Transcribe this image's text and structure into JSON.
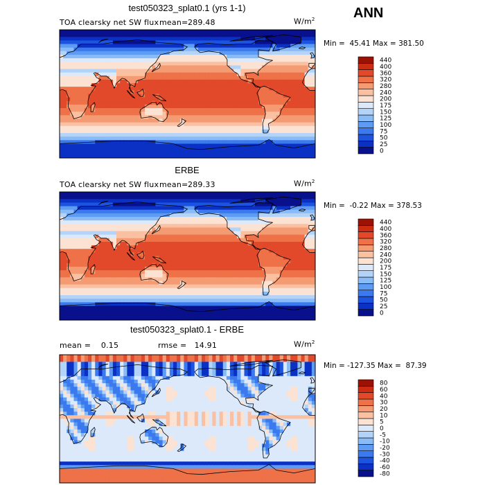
{
  "season": "ANN",
  "chart_data": [
    {
      "type": "heatmap",
      "title": "test050323_splat0.1 (yrs 1-1)",
      "left_label": "TOA clearsky net SW flux",
      "stat_label": "mean=",
      "stat_value": "289.48",
      "units": "W/m",
      "units_sup": "2",
      "min_label": "Min =",
      "min_value": "45.41",
      "max_label": "Max =",
      "max_value": "381.50",
      "levels": [
        "0",
        "25",
        "50",
        "75",
        "100",
        "125",
        "150",
        "175",
        "200",
        "240",
        "280",
        "320",
        "360",
        "400",
        "440"
      ],
      "colors": [
        "#08108c",
        "#0b31c4",
        "#1d54df",
        "#3a79ee",
        "#5d9bf4",
        "#89bcf7",
        "#b3d4f8",
        "#dbe9fa",
        "#fbe2d3",
        "#f9c0a2",
        "#f59b73",
        "#ee7148",
        "#e2492a",
        "#cc2c12",
        "#9b1204"
      ],
      "pattern": "toa",
      "mean": 289.48,
      "min": 45.41,
      "max": 381.5
    },
    {
      "type": "heatmap",
      "title": "ERBE",
      "left_label": "TOA clearsky net SW flux",
      "stat_label": "mean=",
      "stat_value": "289.33",
      "units": "W/m",
      "units_sup": "2",
      "min_label": "Min =",
      "min_value": "-0.22",
      "max_label": "Max =",
      "max_value": "378.53",
      "levels": [
        "0",
        "25",
        "50",
        "75",
        "100",
        "125",
        "150",
        "175",
        "200",
        "240",
        "280",
        "320",
        "360",
        "400",
        "440"
      ],
      "colors": [
        "#08108c",
        "#0b31c4",
        "#1d54df",
        "#3a79ee",
        "#5d9bf4",
        "#89bcf7",
        "#b3d4f8",
        "#dbe9fa",
        "#fbe2d3",
        "#f9c0a2",
        "#f59b73",
        "#ee7148",
        "#e2492a",
        "#cc2c12",
        "#9b1204"
      ],
      "pattern": "toa",
      "mean": 289.33,
      "min": -0.22,
      "max": 378.53
    },
    {
      "type": "heatmap",
      "title": "test050323_splat0.1 - ERBE",
      "mean_label": "mean =",
      "mean_value": "0.15",
      "rmse_label": "rmse =",
      "rmse_value": "14.91",
      "units": "W/m",
      "units_sup": "2",
      "min_label": "Min =",
      "min_value": "-127.35",
      "max_label": "Max =",
      "max_value": "87.39",
      "levels": [
        "-80",
        "-60",
        "-40",
        "-30",
        "-20",
        "-10",
        "-5",
        "0",
        "5",
        "10",
        "20",
        "30",
        "40",
        "60",
        "80"
      ],
      "colors": [
        "#08108c",
        "#0b31c4",
        "#1d54df",
        "#3a79ee",
        "#5d9bf4",
        "#89bcf7",
        "#b3d4f8",
        "#dbe9fa",
        "#fbe2d3",
        "#f9c0a2",
        "#f59b73",
        "#ee7148",
        "#e2492a",
        "#cc2c12",
        "#9b1204"
      ],
      "pattern": "diff",
      "mean": 0.15,
      "rmse": 14.91,
      "min": -127.35,
      "max": 87.39
    }
  ]
}
